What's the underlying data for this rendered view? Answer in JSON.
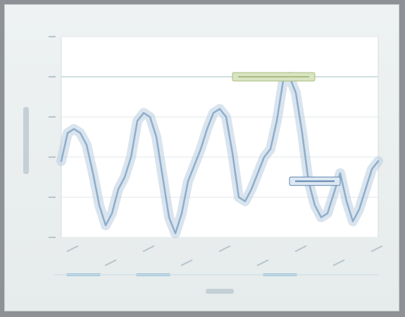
{
  "chart_data": {
    "type": "line",
    "title": "",
    "xlabel": "",
    "ylabel": "",
    "x": [
      0,
      1,
      2,
      3,
      4,
      5,
      6,
      7,
      8,
      9,
      10,
      11,
      12,
      13,
      14,
      15,
      16,
      17,
      18,
      19,
      20,
      21,
      22,
      23,
      24,
      25,
      26,
      27,
      28,
      29,
      30,
      31,
      32,
      33,
      34,
      35,
      36,
      37,
      38,
      39,
      40,
      41,
      42,
      43,
      44,
      45,
      46,
      47,
      48,
      49,
      50
    ],
    "ylim": [
      0,
      5
    ],
    "xlim": [
      0,
      50
    ],
    "grid": true,
    "series": [
      {
        "name": "",
        "color": "#b9cde0",
        "values": [
          1.9,
          2.6,
          2.7,
          2.6,
          2.3,
          1.6,
          0.8,
          0.3,
          0.6,
          1.2,
          1.5,
          2.0,
          2.9,
          3.1,
          3.0,
          2.5,
          1.5,
          0.5,
          0.1,
          0.6,
          1.4,
          1.8,
          2.2,
          2.7,
          3.1,
          3.2,
          3.0,
          2.1,
          1.0,
          0.9,
          1.2,
          1.6,
          2.0,
          2.2,
          2.9,
          3.9,
          4.0,
          3.6,
          2.6,
          1.4,
          0.8,
          0.5,
          0.6,
          1.1,
          1.6,
          0.9,
          0.4,
          0.7,
          1.2,
          1.7,
          1.9
        ]
      }
    ],
    "reference_lines": [
      {
        "y": 4.0,
        "color": "#cfe0e0"
      }
    ],
    "callouts": [
      {
        "x": 27,
        "x2": 40,
        "y": 4.0,
        "text": "",
        "fill": "#d9e4c2",
        "stroke": "#a8bd7e"
      },
      {
        "x": 36,
        "x2": 44,
        "y": 1.4,
        "text": "",
        "fill": "#dde8f2",
        "stroke": "#5f86ad"
      }
    ],
    "bottom_markers": [
      {
        "x_from": 1,
        "x_to": 6,
        "color": "#9cc2dc"
      },
      {
        "x_from": 12,
        "x_to": 17,
        "color": "#9cc2dc"
      },
      {
        "x_from": 32,
        "x_to": 37,
        "color": "#9cc2dc"
      }
    ]
  }
}
